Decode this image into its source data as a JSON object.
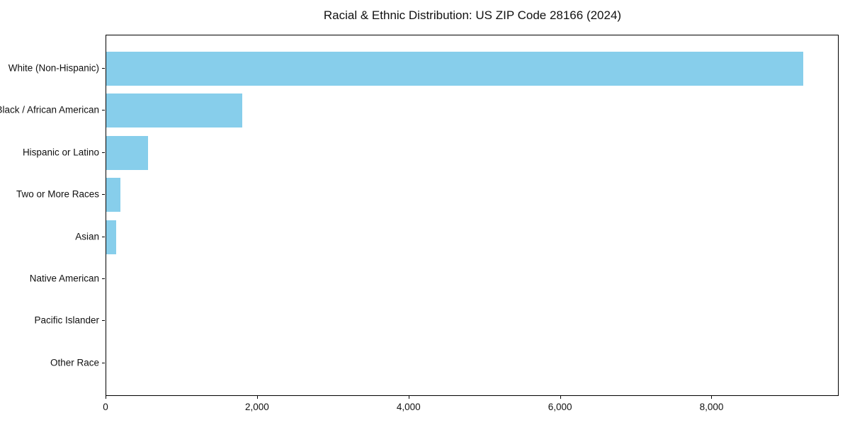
{
  "title": "Racial & Ethnic Distribution: US ZIP Code 28166 (2024)",
  "colors": {
    "bar": "#87CEEB",
    "text": "#111111",
    "axis": "#000000",
    "background": "#FFFFFF"
  },
  "chart_data": {
    "type": "bar",
    "orientation": "horizontal",
    "title": "Racial & Ethnic Distribution: US ZIP Code 28166 (2024)",
    "categories": [
      "White (Non-Hispanic)",
      "Black / African American",
      "Hispanic or Latino",
      "Two or More Races",
      "Asian",
      "Native American",
      "Pacific Islander",
      "Other Race"
    ],
    "values": [
      9200,
      1800,
      550,
      185,
      135,
      0,
      0,
      0
    ],
    "bar_color": "#87CEEB",
    "xlabel": "",
    "ylabel": "",
    "xlim": [
      0,
      9660
    ],
    "x_ticks": [
      0,
      2000,
      4000,
      6000,
      8000
    ],
    "x_tick_labels": [
      "0",
      "2,000",
      "4,000",
      "6,000",
      "8,000"
    ],
    "grid": false,
    "legend": null,
    "category_order": "top-to-bottom"
  }
}
